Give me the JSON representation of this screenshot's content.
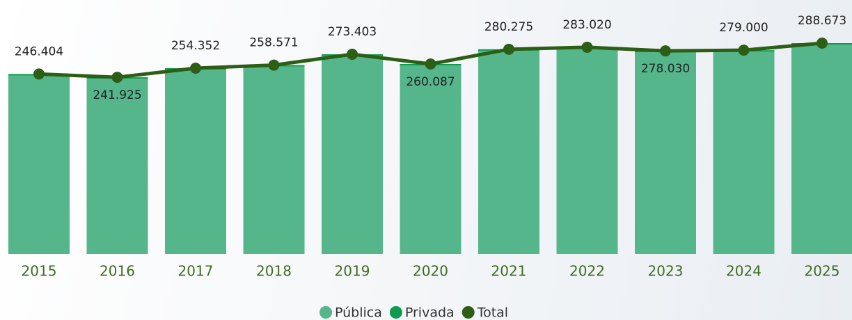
{
  "chart_data": {
    "type": "bar",
    "categories": [
      "2015",
      "2016",
      "2017",
      "2018",
      "2019",
      "2020",
      "2021",
      "2022",
      "2023",
      "2024",
      "2025"
    ],
    "stacked": true,
    "series": [
      {
        "name": "Pública",
        "color": "#56b68b",
        "values": [
          244404,
          239925,
          252352,
          256571,
          271403,
          258087,
          278275,
          281020,
          276030,
          277000,
          286673
        ]
      },
      {
        "name": "Privada",
        "color": "#0f9a4f",
        "values": [
          2000,
          2000,
          2000,
          2000,
          2000,
          2000,
          2000,
          2000,
          2000,
          2000,
          2000
        ]
      },
      {
        "name": "Total",
        "color": "#2d5e16",
        "type": "line",
        "values": [
          246404,
          241925,
          254352,
          258571,
          273403,
          260087,
          280275,
          283020,
          278030,
          279000,
          288673
        ],
        "value_labels": [
          "246.404",
          "241.925",
          "254.352",
          "258.571",
          "273.403",
          "260.087",
          "280.275",
          "283.020",
          "278.030",
          "279.000",
          "288.673"
        ]
      }
    ]
  }
}
